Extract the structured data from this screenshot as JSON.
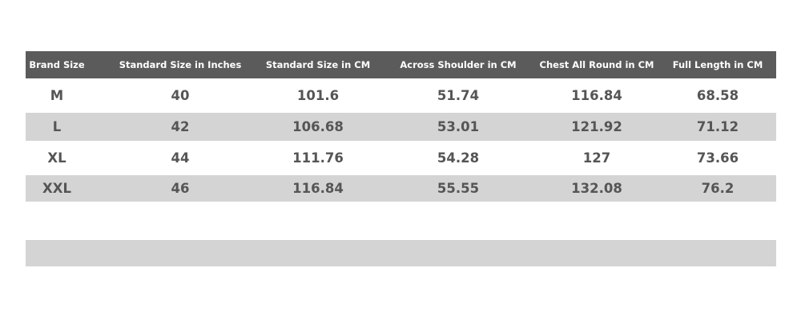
{
  "table": {
    "headers": [
      "Brand Size",
      "Standard Size in Inches",
      "Standard Size in CM",
      "Across Shoulder in CM",
      "Chest All Round in CM",
      "Full Length in CM"
    ],
    "rows": [
      [
        "M",
        "40",
        "101.6",
        "51.74",
        "116.84",
        "68.58"
      ],
      [
        "L",
        "42",
        "106.68",
        "53.01",
        "121.92",
        "71.12"
      ],
      [
        "XL",
        "44",
        "111.76",
        "54.28",
        "127",
        "73.66"
      ],
      [
        "XXL",
        "46",
        "116.84",
        "55.55",
        "132.08",
        "76.2"
      ]
    ]
  }
}
